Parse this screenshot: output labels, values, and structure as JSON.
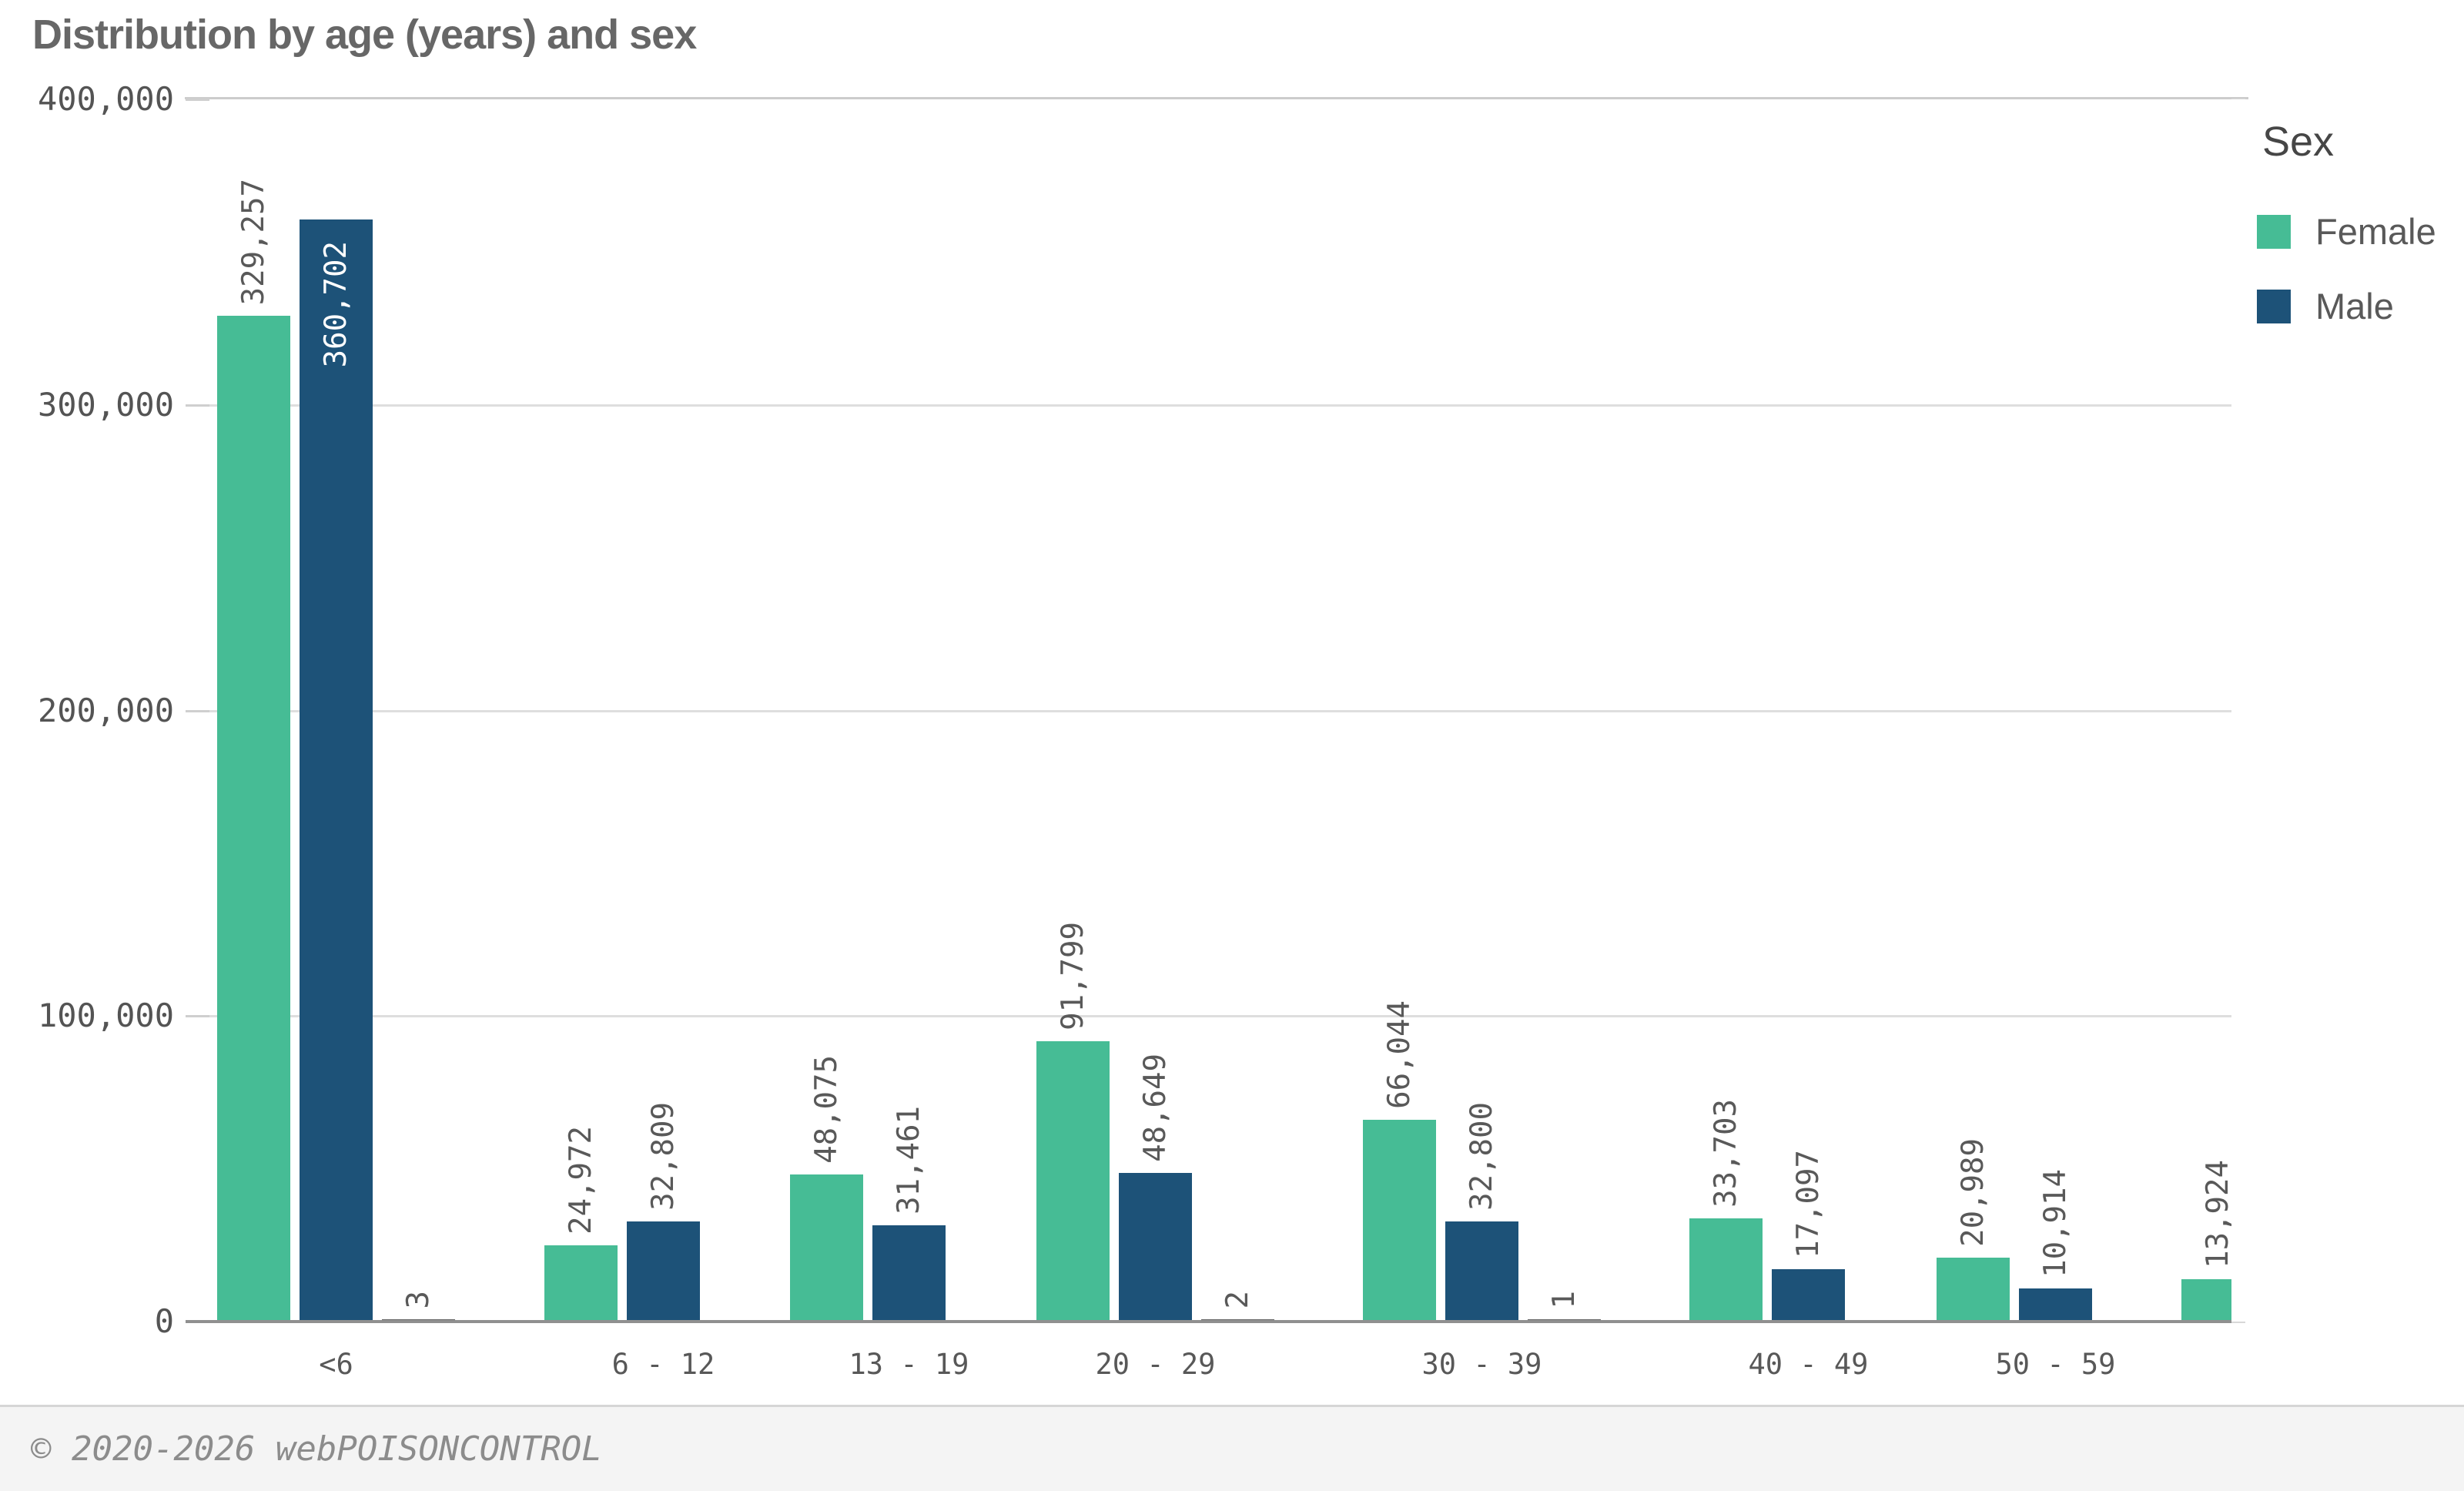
{
  "title": "Distribution by age (years) and sex",
  "y_axis": {
    "tick_labels": [
      "400,000",
      "300,000",
      "200,000",
      "100,000",
      "0"
    ],
    "tick_values": [
      400000,
      300000,
      200000,
      100000,
      0
    ],
    "max": 400000
  },
  "x_axis": {
    "category_labels": [
      "<6",
      "6 - 12",
      "13 - 19",
      "20 - 29",
      "30 - 39",
      "40 - 49",
      "50 - 59"
    ]
  },
  "legend": {
    "title": "Sex",
    "items": [
      {
        "label": "Female",
        "color": "#46BC95"
      },
      {
        "label": "Male",
        "color": "#1D5278"
      }
    ]
  },
  "footer": {
    "copyright": "© 2020-2026 webPOISONCONTROL"
  },
  "chart_data": {
    "type": "bar",
    "title": "Distribution by age (years) and sex",
    "ylim": [
      0,
      400000
    ],
    "grid": "horizontal",
    "legend_position": "right",
    "categories": [
      "<6",
      "6 - 12",
      "13 - 19",
      "20 - 29",
      "30 - 39",
      "40 - 49",
      "50 - 59",
      ""
    ],
    "series": [
      {
        "name": "Female",
        "color": "#46BC95",
        "values": [
          329257,
          24972,
          48075,
          91799,
          66044,
          33703,
          20989,
          13924
        ],
        "labels": [
          "329,257",
          "24,972",
          "48,075",
          "91,799",
          "66,044",
          "33,703",
          "20,989",
          "13,924"
        ]
      },
      {
        "name": "Male",
        "color": "#1D5278",
        "values": [
          360702,
          32809,
          31461,
          48649,
          32800,
          17097,
          10914,
          null
        ],
        "labels": [
          "360,702",
          "32,809",
          "31,461",
          "48,649",
          "32,800",
          "17,097",
          "10,914",
          null
        ]
      },
      {
        "name": "",
        "color": "#666666",
        "values": [
          3,
          null,
          null,
          2,
          1,
          null,
          null,
          null
        ],
        "labels": [
          "3",
          null,
          null,
          "2",
          "1",
          null,
          null,
          null
        ]
      }
    ]
  }
}
